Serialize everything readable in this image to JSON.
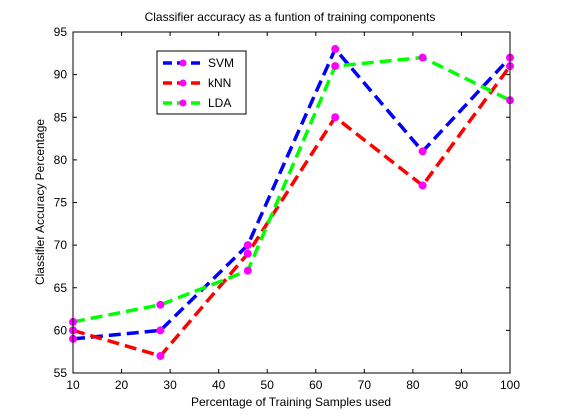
{
  "chart_data": {
    "type": "line",
    "title": "Classifier accuracy as a funtion of training components",
    "xlabel": "Percentage of Training Samples used",
    "ylabel": "Classifier Accuracy Percentage",
    "xlim": [
      10,
      100
    ],
    "ylim": [
      55,
      95
    ],
    "xticks": [
      10,
      20,
      30,
      40,
      50,
      60,
      70,
      80,
      90,
      100
    ],
    "yticks": [
      55,
      60,
      65,
      70,
      75,
      80,
      85,
      90,
      95
    ],
    "grid": false,
    "legend_position": "top-left",
    "marker_color": "#ff00ff",
    "series": [
      {
        "name": "SVM",
        "color": "#0000ff",
        "x": [
          10,
          28,
          46,
          64,
          82,
          100
        ],
        "y": [
          59,
          60,
          70,
          93,
          81,
          92
        ]
      },
      {
        "name": "kNN",
        "color": "#ff0000",
        "x": [
          10,
          28,
          46,
          64,
          82,
          100
        ],
        "y": [
          60,
          57,
          69,
          85,
          77,
          91
        ]
      },
      {
        "name": "LDA",
        "color": "#00ff00",
        "x": [
          10,
          28,
          46,
          64,
          82,
          100
        ],
        "y": [
          61,
          63,
          67,
          91,
          92,
          87
        ]
      }
    ]
  }
}
